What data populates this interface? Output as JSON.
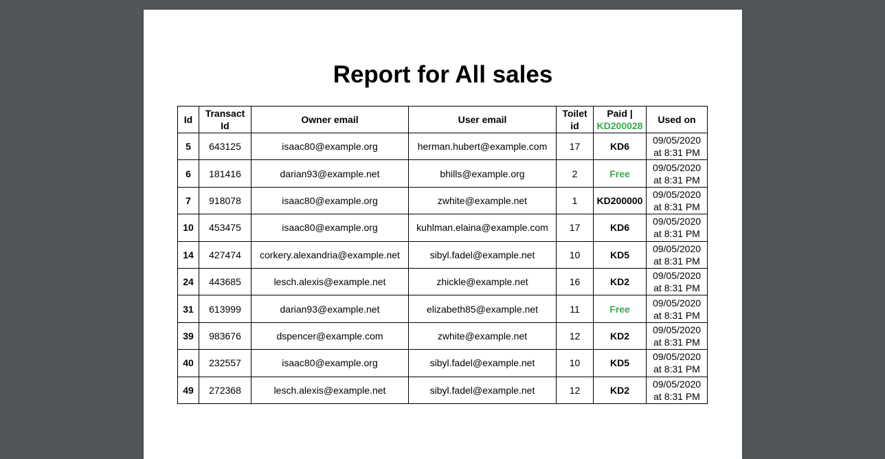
{
  "report": {
    "title": "Report for All sales"
  },
  "table": {
    "headers": {
      "id": "Id",
      "transact_line1": "Transact",
      "transact_line2": "Id",
      "owner_email": "Owner email",
      "user_email": "User email",
      "toilet_line1": "Toilet",
      "toilet_line2": "id",
      "paid_line1": "Paid |",
      "paid_total": "KD200028",
      "used_on": "Used on"
    },
    "rows": [
      {
        "id": "5",
        "transact_id": "643125",
        "owner_email": "isaac80@example.org",
        "user_email": "herman.hubert@example.com",
        "toilet_id": "17",
        "paid": "KD6",
        "free": false,
        "used_date": "09/05/2020",
        "used_time": "at 8:31 PM"
      },
      {
        "id": "6",
        "transact_id": "181416",
        "owner_email": "darian93@example.net",
        "user_email": "bhills@example.org",
        "toilet_id": "2",
        "paid": "Free",
        "free": true,
        "used_date": "09/05/2020",
        "used_time": "at 8:31 PM"
      },
      {
        "id": "7",
        "transact_id": "918078",
        "owner_email": "isaac80@example.org",
        "user_email": "zwhite@example.net",
        "toilet_id": "1",
        "paid": "KD200000",
        "free": false,
        "used_date": "09/05/2020",
        "used_time": "at 8:31 PM"
      },
      {
        "id": "10",
        "transact_id": "453475",
        "owner_email": "isaac80@example.org",
        "user_email": "kuhlman.elaina@example.com",
        "toilet_id": "17",
        "paid": "KD6",
        "free": false,
        "used_date": "09/05/2020",
        "used_time": "at 8:31 PM"
      },
      {
        "id": "14",
        "transact_id": "427474",
        "owner_email": "corkery.alexandria@example.net",
        "user_email": "sibyl.fadel@example.net",
        "toilet_id": "10",
        "paid": "KD5",
        "free": false,
        "used_date": "09/05/2020",
        "used_time": "at 8:31 PM"
      },
      {
        "id": "24",
        "transact_id": "443685",
        "owner_email": "lesch.alexis@example.net",
        "user_email": "zhickle@example.net",
        "toilet_id": "16",
        "paid": "KD2",
        "free": false,
        "used_date": "09/05/2020",
        "used_time": "at 8:31 PM"
      },
      {
        "id": "31",
        "transact_id": "613999",
        "owner_email": "darian93@example.net",
        "user_email": "elizabeth85@example.net",
        "toilet_id": "11",
        "paid": "Free",
        "free": true,
        "used_date": "09/05/2020",
        "used_time": "at 8:31 PM"
      },
      {
        "id": "39",
        "transact_id": "983676",
        "owner_email": "dspencer@example.com",
        "user_email": "zwhite@example.net",
        "toilet_id": "12",
        "paid": "KD2",
        "free": false,
        "used_date": "09/05/2020",
        "used_time": "at 8:31 PM"
      },
      {
        "id": "40",
        "transact_id": "232557",
        "owner_email": "isaac80@example.org",
        "user_email": "sibyl.fadel@example.net",
        "toilet_id": "10",
        "paid": "KD5",
        "free": false,
        "used_date": "09/05/2020",
        "used_time": "at 8:31 PM"
      },
      {
        "id": "49",
        "transact_id": "272368",
        "owner_email": "lesch.alexis@example.net",
        "user_email": "sibyl.fadel@example.net",
        "toilet_id": "12",
        "paid": "KD2",
        "free": false,
        "used_date": "09/05/2020",
        "used_time": "at 8:31 PM"
      }
    ]
  },
  "colors": {
    "viewer_background": "#525659",
    "page_background": "#ffffff",
    "free_green": "#3aaa4a"
  }
}
